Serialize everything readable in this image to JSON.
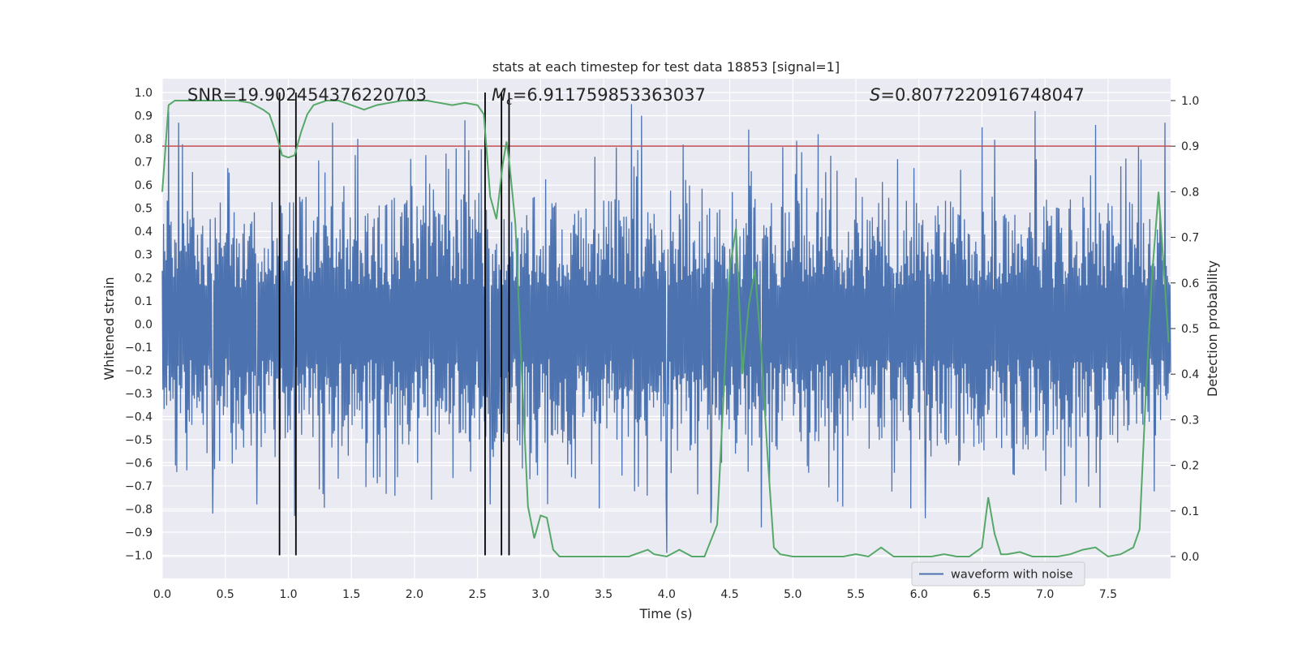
{
  "chart_data": {
    "type": "line",
    "title": "stats at each timestep for test data 18853 [signal=1]",
    "xlabel": "Time (s)",
    "ylabel_left": "Whitened strain",
    "ylabel_right": "Detection probability",
    "xlim": [
      0.0,
      7.996
    ],
    "ylim_left": [
      -1.1,
      1.06
    ],
    "ylim_right": [
      -0.048,
      1.048
    ],
    "x_ticks": [
      "0.0",
      "0.5",
      "1.0",
      "1.5",
      "2.0",
      "2.5",
      "3.0",
      "3.5",
      "4.0",
      "4.5",
      "5.0",
      "5.5",
      "6.0",
      "6.5",
      "7.0",
      "7.5"
    ],
    "x_tick_values": [
      0.0,
      0.5,
      1.0,
      1.5,
      2.0,
      2.5,
      3.0,
      3.5,
      4.0,
      4.5,
      5.0,
      5.5,
      6.0,
      6.5,
      7.0,
      7.5
    ],
    "y_left_ticks": [
      "1.0",
      "0.9",
      "0.8",
      "0.7",
      "0.6",
      "0.5",
      "0.4",
      "0.3",
      "0.2",
      "0.1",
      "0.0",
      "−0.1",
      "−0.2",
      "−0.3",
      "−0.4",
      "−0.5",
      "−0.6",
      "−0.7",
      "−0.8",
      "−0.9",
      "−1.0"
    ],
    "y_left_tick_values": [
      1.0,
      0.9,
      0.8,
      0.7,
      0.6,
      0.5,
      0.4,
      0.3,
      0.2,
      0.1,
      0.0,
      -0.1,
      -0.2,
      -0.3,
      -0.4,
      -0.5,
      -0.6,
      -0.7,
      -0.8,
      -0.9,
      -1.0
    ],
    "y_right_ticks": [
      "1.0",
      "0.9",
      "0.8",
      "0.7",
      "0.6",
      "0.5",
      "0.4",
      "0.3",
      "0.2",
      "0.1",
      "0.0"
    ],
    "y_right_tick_values": [
      1.0,
      0.9,
      0.8,
      0.7,
      0.6,
      0.5,
      0.4,
      0.3,
      0.2,
      0.1,
      0.0
    ],
    "annotations": {
      "snr": "SNR=19.902454376220703",
      "mc_symbol": "M",
      "mc_sub": "c",
      "mc_value": "=6.911759853363037",
      "s_symbol": "S",
      "s_value": "=0.8077220916748047"
    },
    "legend": {
      "label": "waveform with noise",
      "placement": "lower-right"
    },
    "threshold_prob": 0.9,
    "vertical_markers_s": [
      0.93,
      1.06,
      2.56,
      2.69,
      2.75
    ],
    "vertical_marker_range": [
      -1.0,
      1.0
    ],
    "waveform": {
      "name": "waveform with noise",
      "note": "synthetic dense noise trace; core band roughly ±0.4, spikes up to about ±0.95",
      "sample_count": 1600,
      "peaks": [
        [
          0.05,
          0.92
        ],
        [
          0.13,
          0.87
        ],
        [
          0.4,
          -0.82
        ],
        [
          0.75,
          -0.78
        ],
        [
          1.05,
          -0.83
        ],
        [
          1.35,
          0.87
        ],
        [
          1.55,
          0.8
        ],
        [
          2.4,
          0.88
        ],
        [
          2.6,
          -0.78
        ],
        [
          3.72,
          0.95
        ],
        [
          3.8,
          0.9
        ],
        [
          4.0,
          -0.99
        ],
        [
          4.35,
          -0.86
        ],
        [
          4.65,
          0.84
        ],
        [
          4.75,
          -0.88
        ],
        [
          5.2,
          0.82
        ],
        [
          6.05,
          -0.84
        ],
        [
          6.5,
          0.85
        ],
        [
          6.92,
          0.92
        ],
        [
          7.4,
          0.86
        ],
        [
          7.95,
          0.87
        ]
      ]
    },
    "probability": {
      "name": "detection probability",
      "x": [
        0.0,
        0.05,
        0.1,
        0.2,
        0.3,
        0.4,
        0.5,
        0.6,
        0.7,
        0.8,
        0.85,
        0.9,
        0.95,
        1.0,
        1.05,
        1.1,
        1.15,
        1.2,
        1.3,
        1.4,
        1.5,
        1.6,
        1.7,
        1.8,
        1.9,
        2.0,
        2.1,
        2.2,
        2.3,
        2.4,
        2.5,
        2.55,
        2.6,
        2.65,
        2.7,
        2.73,
        2.75,
        2.8,
        2.85,
        2.9,
        2.95,
        3.0,
        3.05,
        3.1,
        3.15,
        3.2,
        3.3,
        3.4,
        3.5,
        3.6,
        3.7,
        3.8,
        3.85,
        3.9,
        4.0,
        4.1,
        4.2,
        4.3,
        4.4,
        4.45,
        4.5,
        4.55,
        4.6,
        4.65,
        4.7,
        4.75,
        4.8,
        4.85,
        4.9,
        5.0,
        5.2,
        5.4,
        5.5,
        5.6,
        5.7,
        5.8,
        5.9,
        6.0,
        6.1,
        6.2,
        6.3,
        6.4,
        6.5,
        6.55,
        6.6,
        6.65,
        6.7,
        6.8,
        6.9,
        7.0,
        7.1,
        7.2,
        7.3,
        7.4,
        7.5,
        7.6,
        7.7,
        7.75,
        7.8,
        7.85,
        7.9,
        7.95,
        7.98
      ],
      "y": [
        0.8,
        0.99,
        1.0,
        1.0,
        1.0,
        1.0,
        1.0,
        1.0,
        0.995,
        0.98,
        0.97,
        0.93,
        0.88,
        0.875,
        0.88,
        0.93,
        0.97,
        0.99,
        1.0,
        1.0,
        0.99,
        0.98,
        0.99,
        0.995,
        1.0,
        1.0,
        1.0,
        0.995,
        0.99,
        0.995,
        0.99,
        0.97,
        0.79,
        0.74,
        0.86,
        0.91,
        0.87,
        0.73,
        0.41,
        0.11,
        0.04,
        0.09,
        0.085,
        0.015,
        0.0,
        0.0,
        0.0,
        0.0,
        0.0,
        0.0,
        0.0,
        0.01,
        0.015,
        0.005,
        0.0,
        0.015,
        0.0,
        0.0,
        0.07,
        0.35,
        0.63,
        0.72,
        0.4,
        0.55,
        0.63,
        0.45,
        0.22,
        0.02,
        0.005,
        0.0,
        0.0,
        0.0,
        0.005,
        0.0,
        0.02,
        0.0,
        0.0,
        0.0,
        0.0,
        0.005,
        0.0,
        0.0,
        0.02,
        0.13,
        0.05,
        0.005,
        0.005,
        0.01,
        0.0,
        0.0,
        0.0,
        0.005,
        0.015,
        0.02,
        0.0,
        0.005,
        0.02,
        0.06,
        0.36,
        0.62,
        0.8,
        0.6,
        0.47
      ]
    },
    "colors": {
      "background": "#eaeaf2",
      "grid": "#ffffff",
      "waveform": "#4c72b0",
      "probability": "#55a868",
      "threshold": "#c44e52",
      "markers": "#000000"
    }
  }
}
